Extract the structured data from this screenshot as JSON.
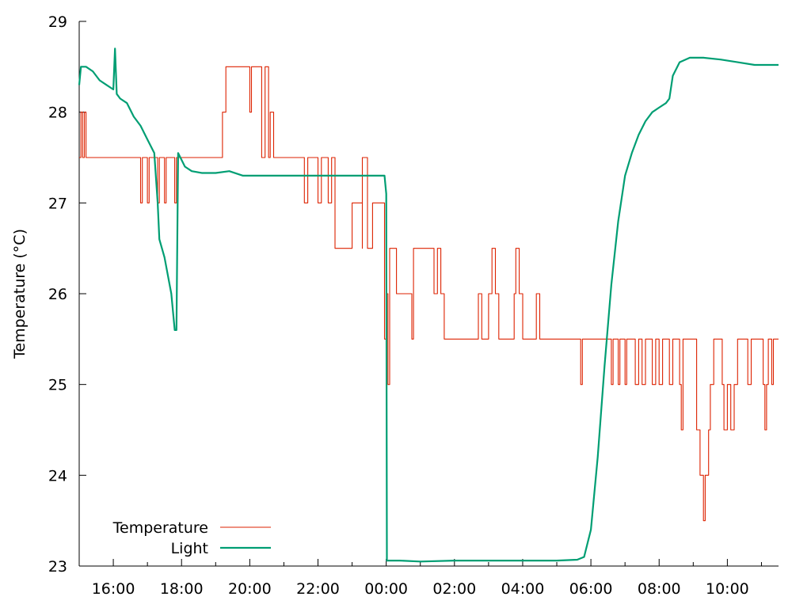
{
  "chart_data": {
    "type": "line",
    "title": "",
    "xlabel": "",
    "ylabel": "Temperature (°C)",
    "ylim": [
      23,
      29
    ],
    "xlim_hours": [
      15.0,
      35.5
    ],
    "yticks": [
      23,
      24,
      25,
      26,
      27,
      28,
      29
    ],
    "xticks": [
      {
        "hour": 16,
        "label": "16:00"
      },
      {
        "hour": 18,
        "label": "18:00"
      },
      {
        "hour": 20,
        "label": "20:00"
      },
      {
        "hour": 22,
        "label": "22:00"
      },
      {
        "hour": 24,
        "label": "00:00"
      },
      {
        "hour": 26,
        "label": "02:00"
      },
      {
        "hour": 28,
        "label": "04:00"
      },
      {
        "hour": 30,
        "label": "06:00"
      },
      {
        "hour": 32,
        "label": "08:00"
      },
      {
        "hour": 34,
        "label": "10:00"
      }
    ],
    "minor_xticks_hours": [
      15,
      17,
      19,
      21,
      23,
      25,
      27,
      29,
      31,
      33,
      35
    ],
    "grid": false,
    "legend_position": "bottom-left",
    "series": [
      {
        "name": "Temperature",
        "color": "#dd2200",
        "style": "step",
        "points": [
          [
            15.0,
            27.5
          ],
          [
            15.05,
            28.0
          ],
          [
            15.1,
            27.5
          ],
          [
            15.15,
            28.0
          ],
          [
            15.2,
            27.5
          ],
          [
            16.8,
            27.5
          ],
          [
            16.8,
            27.0
          ],
          [
            16.85,
            27.5
          ],
          [
            17.0,
            27.0
          ],
          [
            17.05,
            27.5
          ],
          [
            17.3,
            27.0
          ],
          [
            17.35,
            27.5
          ],
          [
            17.5,
            27.0
          ],
          [
            17.55,
            27.5
          ],
          [
            17.8,
            27.0
          ],
          [
            17.85,
            27.5
          ],
          [
            19.15,
            27.5
          ],
          [
            19.2,
            28.0
          ],
          [
            19.3,
            28.5
          ],
          [
            20.0,
            28.5
          ],
          [
            20.0,
            28.0
          ],
          [
            20.05,
            28.5
          ],
          [
            20.3,
            28.5
          ],
          [
            20.35,
            27.5
          ],
          [
            20.45,
            28.5
          ],
          [
            20.55,
            27.5
          ],
          [
            20.6,
            28.0
          ],
          [
            20.7,
            27.5
          ],
          [
            21.6,
            27.5
          ],
          [
            21.6,
            27.0
          ],
          [
            21.7,
            27.5
          ],
          [
            22.0,
            27.0
          ],
          [
            22.1,
            27.5
          ],
          [
            22.3,
            27.0
          ],
          [
            22.4,
            27.5
          ],
          [
            22.5,
            27.0
          ],
          [
            22.5,
            26.5
          ],
          [
            23.0,
            26.5
          ],
          [
            23.0,
            27.0
          ],
          [
            23.3,
            26.5
          ],
          [
            23.3,
            27.5
          ],
          [
            23.45,
            26.5
          ],
          [
            23.5,
            26.5
          ],
          [
            23.6,
            27.0
          ],
          [
            23.9,
            27.0
          ],
          [
            23.95,
            25.5
          ],
          [
            24.0,
            26.0
          ],
          [
            24.05,
            25.0
          ],
          [
            24.1,
            26.5
          ],
          [
            24.3,
            26.5
          ],
          [
            24.3,
            26.0
          ],
          [
            24.7,
            26.0
          ],
          [
            24.75,
            25.5
          ],
          [
            24.8,
            26.5
          ],
          [
            25.3,
            26.5
          ],
          [
            25.4,
            26.0
          ],
          [
            25.5,
            26.5
          ],
          [
            25.6,
            26.0
          ],
          [
            25.7,
            25.5
          ],
          [
            26.5,
            25.5
          ],
          [
            26.7,
            26.0
          ],
          [
            26.8,
            25.5
          ],
          [
            27.0,
            26.0
          ],
          [
            27.1,
            26.5
          ],
          [
            27.2,
            26.0
          ],
          [
            27.3,
            25.5
          ],
          [
            27.7,
            25.5
          ],
          [
            27.75,
            26.0
          ],
          [
            27.8,
            26.5
          ],
          [
            27.9,
            26.0
          ],
          [
            28.0,
            25.5
          ],
          [
            28.3,
            25.5
          ],
          [
            28.4,
            26.0
          ],
          [
            28.5,
            25.5
          ],
          [
            28.9,
            25.5
          ],
          [
            29.7,
            25.5
          ],
          [
            29.7,
            25.0
          ],
          [
            29.75,
            25.5
          ],
          [
            30.6,
            25.5
          ],
          [
            30.6,
            25.0
          ],
          [
            30.65,
            25.5
          ],
          [
            30.8,
            25.0
          ],
          [
            30.85,
            25.5
          ],
          [
            31.0,
            25.0
          ],
          [
            31.05,
            25.5
          ],
          [
            31.3,
            25.0
          ],
          [
            31.4,
            25.5
          ],
          [
            31.5,
            25.0
          ],
          [
            31.6,
            25.5
          ],
          [
            31.8,
            25.0
          ],
          [
            31.9,
            25.5
          ],
          [
            32.0,
            25.0
          ],
          [
            32.1,
            25.5
          ],
          [
            32.3,
            25.0
          ],
          [
            32.4,
            25.5
          ],
          [
            32.6,
            25.0
          ],
          [
            32.65,
            24.5
          ],
          [
            32.7,
            25.5
          ],
          [
            33.1,
            25.5
          ],
          [
            33.1,
            24.5
          ],
          [
            33.2,
            24.0
          ],
          [
            33.3,
            23.5
          ],
          [
            33.35,
            24.0
          ],
          [
            33.45,
            24.5
          ],
          [
            33.5,
            25.0
          ],
          [
            33.6,
            25.5
          ],
          [
            33.8,
            25.5
          ],
          [
            33.85,
            25.0
          ],
          [
            33.9,
            24.5
          ],
          [
            34.0,
            25.0
          ],
          [
            34.1,
            24.5
          ],
          [
            34.2,
            25.0
          ],
          [
            34.3,
            25.5
          ],
          [
            34.6,
            25.5
          ],
          [
            34.6,
            25.0
          ],
          [
            34.7,
            25.5
          ],
          [
            35.05,
            25.5
          ],
          [
            35.05,
            25.0
          ],
          [
            35.1,
            24.5
          ],
          [
            35.15,
            25.0
          ],
          [
            35.2,
            25.5
          ],
          [
            35.3,
            25.0
          ],
          [
            35.35,
            25.5
          ],
          [
            35.5,
            25.5
          ]
        ]
      },
      {
        "name": "Light",
        "color": "#009e73",
        "style": "line",
        "points": [
          [
            15.0,
            28.3
          ],
          [
            15.05,
            28.5
          ],
          [
            15.1,
            28.5
          ],
          [
            15.2,
            28.5
          ],
          [
            15.4,
            28.45
          ],
          [
            15.6,
            28.35
          ],
          [
            15.8,
            28.3
          ],
          [
            16.0,
            28.25
          ],
          [
            16.05,
            28.7
          ],
          [
            16.1,
            28.2
          ],
          [
            16.2,
            28.15
          ],
          [
            16.4,
            28.1
          ],
          [
            16.6,
            27.95
          ],
          [
            16.8,
            27.85
          ],
          [
            17.0,
            27.7
          ],
          [
            17.2,
            27.55
          ],
          [
            17.3,
            27.0
          ],
          [
            17.35,
            26.6
          ],
          [
            17.5,
            26.4
          ],
          [
            17.7,
            26.0
          ],
          [
            17.8,
            25.6
          ],
          [
            17.85,
            25.6
          ],
          [
            17.9,
            27.55
          ],
          [
            18.1,
            27.4
          ],
          [
            18.3,
            27.35
          ],
          [
            18.6,
            27.33
          ],
          [
            19.0,
            27.33
          ],
          [
            19.4,
            27.35
          ],
          [
            19.8,
            27.3
          ],
          [
            20.2,
            27.3
          ],
          [
            20.6,
            27.3
          ],
          [
            21.0,
            27.3
          ],
          [
            21.6,
            27.3
          ],
          [
            22.0,
            27.3
          ],
          [
            22.4,
            27.3
          ],
          [
            22.8,
            27.3
          ],
          [
            23.2,
            27.3
          ],
          [
            23.6,
            27.3
          ],
          [
            23.95,
            27.3
          ],
          [
            24.0,
            27.1
          ],
          [
            24.02,
            23.06
          ],
          [
            24.4,
            23.06
          ],
          [
            25.0,
            23.05
          ],
          [
            26.0,
            23.06
          ],
          [
            27.0,
            23.06
          ],
          [
            28.0,
            23.06
          ],
          [
            29.0,
            23.06
          ],
          [
            29.6,
            23.07
          ],
          [
            29.8,
            23.1
          ],
          [
            30.0,
            23.4
          ],
          [
            30.2,
            24.2
          ],
          [
            30.4,
            25.2
          ],
          [
            30.6,
            26.1
          ],
          [
            30.8,
            26.8
          ],
          [
            31.0,
            27.3
          ],
          [
            31.2,
            27.55
          ],
          [
            31.4,
            27.75
          ],
          [
            31.6,
            27.9
          ],
          [
            31.8,
            28.0
          ],
          [
            32.0,
            28.05
          ],
          [
            32.2,
            28.1
          ],
          [
            32.3,
            28.15
          ],
          [
            32.4,
            28.4
          ],
          [
            32.6,
            28.55
          ],
          [
            32.9,
            28.6
          ],
          [
            33.3,
            28.6
          ],
          [
            33.8,
            28.58
          ],
          [
            34.3,
            28.55
          ],
          [
            34.8,
            28.52
          ],
          [
            35.5,
            28.52
          ]
        ]
      }
    ]
  }
}
